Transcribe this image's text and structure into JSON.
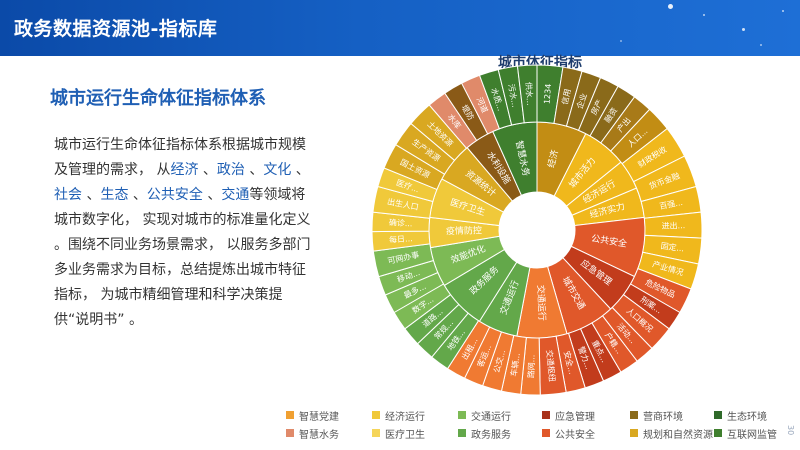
{
  "header": {
    "title": "政务数据资源池-指标库"
  },
  "content": {
    "heading": "城市运行生命体征指标体系",
    "paragraph": [
      {
        "text": "城市运行生命体征指标体系根据城市规模及管理的需求，  从"
      },
      {
        "text": "经济",
        "hl": true
      },
      {
        "text": " 、"
      },
      {
        "text": "政治",
        "hl": true
      },
      {
        "text": " 、"
      },
      {
        "text": "文化",
        "hl": true
      },
      {
        "text": " 、"
      },
      {
        "text": "社会",
        "hl": true
      },
      {
        "text": " 、"
      },
      {
        "text": "生态",
        "hl": true
      },
      {
        "text": " 、"
      },
      {
        "text": "公共安全",
        "hl": true
      },
      {
        "text": " 、"
      },
      {
        "text": "交通",
        "hl": true
      },
      {
        "text": "等领域将城市数字化，  实现对城市的标准量化定义 。围绕不同业务场景需求，  以服务多部门多业务需求为目标，总结提炼出城市特征指标，  为城市精细管理和科学决策提供“说明书” 。"
      }
    ]
  },
  "colors": {
    "header_bg": "#1560c4",
    "heading": "#1f5fb4",
    "body_text": "#333333"
  },
  "chart_data": {
    "type": "sunburst",
    "title": "城市体征指标",
    "inner": [
      {
        "label": "经济",
        "color": "#c28d14",
        "value": 10
      },
      {
        "label": "城市活力",
        "color": "#f0b81c",
        "value": 9
      },
      {
        "label": "经济运行",
        "color": "#f0b81c",
        "value": 6
      },
      {
        "label": "经济实力",
        "color": "#f0b81c",
        "value": 6
      },
      {
        "label": "公共安全",
        "color": "#e0582a",
        "value": 12
      },
      {
        "label": "应急管理",
        "color": "#c23c1c",
        "value": 8
      },
      {
        "label": "城市交通",
        "color": "#e0582a",
        "value": 10
      },
      {
        "label": "交通运行",
        "color": "#f07a32",
        "value": 10
      },
      {
        "label": "交通运行",
        "color": "#63a84a",
        "value": 8
      },
      {
        "label": "政务服务",
        "color": "#63a84a",
        "value": 10
      },
      {
        "label": "效能优化",
        "color": "#7dba55",
        "value": 8
      },
      {
        "label": "疫情防控",
        "color": "#f0c93a",
        "value": 6
      },
      {
        "label": "医疗卫生",
        "color": "#f0c93a",
        "value": 8
      },
      {
        "label": "资源统计",
        "color": "#d9a821",
        "value": 8
      },
      {
        "label": "水利设施",
        "color": "#8a5a17",
        "value": 6
      },
      {
        "label": "智慧水务",
        "color": "#3f7f2e",
        "value": 9
      }
    ],
    "outer": [
      {
        "label": "1234",
        "color": "#3f7f2e",
        "value": 4
      },
      {
        "label": "信用",
        "color": "#8a6a1a",
        "value": 3
      },
      {
        "label": "企业",
        "color": "#8a6a1a",
        "value": 3
      },
      {
        "label": "房产",
        "color": "#8a6a1a",
        "value": 3
      },
      {
        "label": "融资",
        "color": "#8a6a1a",
        "value": 3
      },
      {
        "label": "产出",
        "color": "#a87a18",
        "value": 3
      },
      {
        "label": "人口...",
        "color": "#c28d14",
        "value": 4
      },
      {
        "label": "财政税收",
        "color": "#f0b81c",
        "value": 5
      },
      {
        "label": "货币金融",
        "color": "#f0b81c",
        "value": 5
      },
      {
        "label": "百强...",
        "color": "#f0b81c",
        "value": 4
      },
      {
        "label": "进出...",
        "color": "#f0b81c",
        "value": 4
      },
      {
        "label": "固定...",
        "color": "#f0b81c",
        "value": 4
      },
      {
        "label": "产业情况",
        "color": "#f0b81c",
        "value": 4
      },
      {
        "label": "危险物品",
        "color": "#e0582a",
        "value": 4
      },
      {
        "label": "刑案...",
        "color": "#c23c1c",
        "value": 3
      },
      {
        "label": "人口概况",
        "color": "#e0582a",
        "value": 4
      },
      {
        "label": "活动...",
        "color": "#e0582a",
        "value": 3
      },
      {
        "label": "户籍...",
        "color": "#e0582a",
        "value": 3
      },
      {
        "label": "重点...",
        "color": "#c23c1c",
        "value": 3
      },
      {
        "label": "警力...",
        "color": "#c23c1c",
        "value": 3
      },
      {
        "label": "安全...",
        "color": "#e0582a",
        "value": 3
      },
      {
        "label": "交通枢纽",
        "color": "#e0582a",
        "value": 4
      },
      {
        "label": "路网...",
        "color": "#f07a32",
        "value": 3
      },
      {
        "label": "车辆...",
        "color": "#f07a32",
        "value": 3
      },
      {
        "label": "公交...",
        "color": "#f07a32",
        "value": 3
      },
      {
        "label": "客运...",
        "color": "#f07a32",
        "value": 3
      },
      {
        "label": "出租...",
        "color": "#f07a32",
        "value": 3
      },
      {
        "label": "地铁...",
        "color": "#63a84a",
        "value": 3
      },
      {
        "label": "常规...",
        "color": "#63a84a",
        "value": 3
      },
      {
        "label": "道路...",
        "color": "#63a84a",
        "value": 3
      },
      {
        "label": "数字...",
        "color": "#7dba55",
        "value": 3
      },
      {
        "label": "最多...",
        "color": "#7dba55",
        "value": 3
      },
      {
        "label": "移动...",
        "color": "#7dba55",
        "value": 3
      },
      {
        "label": "可网办事",
        "color": "#7dba55",
        "value": 4
      },
      {
        "label": "每日...",
        "color": "#f0c93a",
        "value": 3
      },
      {
        "label": "确诊...",
        "color": "#f0c93a",
        "value": 3
      },
      {
        "label": "出生人口",
        "color": "#f0c93a",
        "value": 4
      },
      {
        "label": "医疗...",
        "color": "#f0c93a",
        "value": 3
      },
      {
        "label": "国土资源",
        "color": "#d9a821",
        "value": 4
      },
      {
        "label": "生产资源",
        "color": "#d9a821",
        "value": 4
      },
      {
        "label": "土地资源",
        "color": "#d9a821",
        "value": 4
      },
      {
        "label": "水库",
        "color": "#e08a6a",
        "value": 3
      },
      {
        "label": "堤防",
        "color": "#8a5a17",
        "value": 3
      },
      {
        "label": "河道",
        "color": "#e08a6a",
        "value": 3
      },
      {
        "label": "水质...",
        "color": "#3f7f2e",
        "value": 3
      },
      {
        "label": "污水...",
        "color": "#3f7f2e",
        "value": 3
      },
      {
        "label": "供水...",
        "color": "#3f7f2e",
        "value": 3
      }
    ],
    "legend": [
      {
        "label": "智慧党建",
        "color": "#f0a032"
      },
      {
        "label": "经济运行",
        "color": "#f0c93a"
      },
      {
        "label": "交通运行",
        "color": "#7dba55"
      },
      {
        "label": "应急管理",
        "color": "#a8321c"
      },
      {
        "label": "营商环境",
        "color": "#8a6a1a"
      },
      {
        "label": "生态环境",
        "color": "#2f6a2a"
      },
      {
        "label": "智慧水务",
        "color": "#e08a6a"
      },
      {
        "label": "医疗卫生",
        "color": "#f5d55a"
      },
      {
        "label": "政务服务",
        "color": "#63a84a"
      },
      {
        "label": "公共安全",
        "color": "#e0582a"
      },
      {
        "label": "规划和自然资源",
        "color": "#d9a821"
      },
      {
        "label": "互联网监管",
        "color": "#3f7f2e"
      }
    ]
  },
  "page_number": "30"
}
